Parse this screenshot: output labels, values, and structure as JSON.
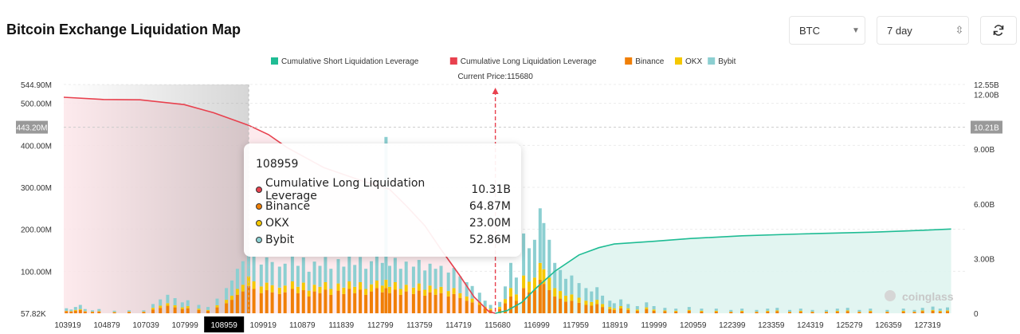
{
  "header": {
    "title": "Bitcoin Exchange Liquidation Map"
  },
  "controls": {
    "coin": "BTC",
    "range": "7 day"
  },
  "colors": {
    "short": "#1fbc94",
    "long": "#e8414e",
    "binance": "#f07f06",
    "okx": "#f5c800",
    "bybit": "#8ccfd1",
    "tooltip_label": "#111111"
  },
  "watermark": "coinglass",
  "chart_data": {
    "type": "bar",
    "title": "Bitcoin Exchange Liquidation Map",
    "legend": [
      {
        "name": "Cumulative Short Liquidation Leverage",
        "color": "#1fbc94"
      },
      {
        "name": "Cumulative Long Liquidation Leverage",
        "color": "#e8414e"
      },
      {
        "name": "Binance",
        "color": "#f07f06"
      },
      {
        "name": "OKX",
        "color": "#f5c800"
      },
      {
        "name": "Bybit",
        "color": "#8ccfd1"
      }
    ],
    "current_price_label": "Current Price:115680",
    "current_price": 115680,
    "x_range": [
      103919,
      128500
    ],
    "x_ticks": [
      "103919",
      "104879",
      "107039",
      "107999",
      "108959",
      "109919",
      "110879",
      "111839",
      "112799",
      "113759",
      "114719",
      "115680",
      "116999",
      "117959",
      "118919",
      "119999",
      "120959",
      "122399",
      "123359",
      "124319",
      "125279",
      "126359",
      "127319"
    ],
    "left_axis": {
      "ticks": [
        "544.90M",
        "500.00M",
        "400.00M",
        "300.00M",
        "200.00M",
        "100.00M",
        "57.82K"
      ],
      "tick_values": [
        544.9,
        500,
        400,
        300,
        200,
        100,
        0
      ],
      "unit": "M",
      "range": [
        0,
        544.9
      ]
    },
    "right_axis": {
      "ticks": [
        "12.55B",
        "12.00B",
        "9.00B",
        "6.00B",
        "3.00B",
        "0"
      ],
      "tick_values": [
        12.55,
        12,
        9,
        6,
        3,
        0
      ],
      "unit": "B",
      "range": [
        0,
        12.55
      ]
    },
    "crosshair": {
      "x_label": "108959",
      "left_label": "443.20M",
      "right_label": "10.21B"
    },
    "long_curve": [
      [
        103919,
        11.85
      ],
      [
        105000,
        11.73
      ],
      [
        106000,
        11.71
      ],
      [
        107200,
        11.45
      ],
      [
        108000,
        11.0
      ],
      [
        108959,
        10.31
      ],
      [
        109500,
        9.8
      ],
      [
        110000,
        9.1
      ],
      [
        111000,
        8.0
      ],
      [
        112000,
        7.3
      ],
      [
        112800,
        6.8
      ],
      [
        113300,
        5.8
      ],
      [
        113760,
        4.8
      ],
      [
        114200,
        3.5
      ],
      [
        114700,
        2.1
      ],
      [
        115100,
        0.9
      ],
      [
        115500,
        0.1
      ],
      [
        115680,
        0
      ]
    ],
    "short_curve": [
      [
        115680,
        0
      ],
      [
        116000,
        0.15
      ],
      [
        116400,
        0.6
      ],
      [
        116800,
        1.4
      ],
      [
        117300,
        2.3
      ],
      [
        117960,
        3.2
      ],
      [
        118500,
        3.6
      ],
      [
        118920,
        3.8
      ],
      [
        120000,
        3.95
      ],
      [
        121000,
        4.1
      ],
      [
        122400,
        4.25
      ],
      [
        124000,
        4.35
      ],
      [
        126000,
        4.45
      ],
      [
        127300,
        4.55
      ],
      [
        128100,
        4.62
      ]
    ],
    "tooltip": {
      "title": "108959",
      "rows": [
        {
          "label": "Cumulative Long Liquidation Leverage",
          "value": "10.31B",
          "color": "#e8414e"
        },
        {
          "label": "Binance",
          "value": "64.87M",
          "color": "#f07f06"
        },
        {
          "label": "OKX",
          "value": "23.00M",
          "color": "#f5c800"
        },
        {
          "label": "Bybit",
          "value": "52.86M",
          "color": "#8ccfd1"
        }
      ]
    },
    "bars_M": [
      [
        [
          103990,
          5,
          1,
          6
        ],
        [
          104120,
          4,
          1,
          4
        ],
        [
          104240,
          6,
          2,
          7
        ],
        [
          104370,
          8,
          2,
          10
        ],
        [
          104500,
          4,
          1,
          5
        ],
        [
          104700,
          3,
          1,
          3
        ],
        [
          104880,
          4,
          1,
          5
        ],
        [
          105300,
          2,
          1,
          3
        ],
        [
          105700,
          3,
          1,
          3
        ],
        [
          106100,
          3,
          1,
          3
        ],
        [
          106350,
          9,
          4,
          9
        ],
        [
          106550,
          13,
          5,
          15
        ],
        [
          106750,
          18,
          6,
          20
        ],
        [
          106950,
          14,
          5,
          17
        ],
        [
          107150,
          10,
          4,
          12
        ],
        [
          107300,
          12,
          5,
          14
        ],
        [
          107600,
          8,
          3,
          9
        ],
        [
          107850,
          6,
          2,
          7
        ],
        [
          108100,
          14,
          5,
          16
        ],
        [
          108350,
          24,
          8,
          28
        ],
        [
          108500,
          32,
          10,
          36
        ],
        [
          108650,
          44,
          14,
          48
        ],
        [
          108800,
          52,
          16,
          56
        ],
        [
          108959,
          65,
          23,
          53
        ],
        [
          109100,
          58,
          18,
          60
        ],
        [
          109300,
          48,
          16,
          52
        ],
        [
          109450,
          55,
          18,
          60
        ],
        [
          109600,
          50,
          17,
          55
        ],
        [
          109800,
          46,
          15,
          50
        ],
        [
          109950,
          50,
          16,
          52
        ],
        [
          110150,
          58,
          18,
          62
        ],
        [
          110300,
          48,
          15,
          50
        ],
        [
          110450,
          55,
          18,
          60
        ],
        [
          110600,
          40,
          14,
          45
        ],
        [
          110750,
          52,
          16,
          55
        ],
        [
          110900,
          48,
          15,
          50
        ],
        [
          111050,
          56,
          18,
          60
        ],
        [
          111200,
          44,
          14,
          48
        ],
        [
          111400,
          54,
          17,
          58
        ],
        [
          111550,
          46,
          15,
          50
        ],
        [
          111700,
          58,
          18,
          60
        ],
        [
          111850,
          48,
          15,
          52
        ],
        [
          112000,
          56,
          18,
          60
        ],
        [
          112150,
          44,
          14,
          48
        ],
        [
          112300,
          52,
          17,
          55
        ],
        [
          112450,
          60,
          18,
          62
        ],
        [
          112600,
          50,
          16,
          54
        ],
        [
          112700,
          60,
          20,
          340
        ],
        [
          112800,
          48,
          15,
          50
        ],
        [
          112950,
          56,
          18,
          58
        ],
        [
          113100,
          44,
          14,
          48
        ],
        [
          113250,
          52,
          16,
          55
        ],
        [
          113450,
          46,
          15,
          50
        ],
        [
          113600,
          54,
          17,
          56
        ],
        [
          113760,
          42,
          14,
          46
        ],
        [
          113900,
          50,
          16,
          52
        ],
        [
          114050,
          44,
          14,
          48
        ],
        [
          114200,
          48,
          15,
          50
        ],
        [
          114400,
          40,
          13,
          44
        ],
        [
          114550,
          46,
          14,
          48
        ],
        [
          114720,
          36,
          12,
          40
        ],
        [
          114900,
          30,
          10,
          34
        ],
        [
          115050,
          26,
          9,
          30
        ],
        [
          115250,
          20,
          7,
          22
        ],
        [
          115400,
          12,
          4,
          14
        ],
        [
          115550,
          8,
          3,
          9
        ]
      ],
      [
        [
          115800,
          10,
          5,
          12
        ],
        [
          115950,
          24,
          10,
          30
        ],
        [
          116100,
          40,
          20,
          60
        ],
        [
          116250,
          30,
          15,
          40
        ],
        [
          116450,
          60,
          30,
          100
        ],
        [
          116600,
          50,
          25,
          80
        ],
        [
          116750,
          55,
          30,
          90
        ],
        [
          116900,
          80,
          40,
          130
        ],
        [
          117000,
          70,
          35,
          110
        ],
        [
          117150,
          55,
          30,
          90
        ],
        [
          117300,
          40,
          20,
          60
        ],
        [
          117450,
          35,
          18,
          50
        ],
        [
          117600,
          28,
          14,
          40
        ],
        [
          117760,
          30,
          15,
          45
        ],
        [
          117960,
          25,
          12,
          35
        ],
        [
          118150,
          20,
          10,
          30
        ],
        [
          118300,
          18,
          9,
          25
        ],
        [
          118450,
          22,
          10,
          30
        ],
        [
          118600,
          15,
          7,
          20
        ],
        [
          118800,
          10,
          5,
          15
        ],
        [
          118920,
          8,
          4,
          12
        ],
        [
          119100,
          12,
          5,
          16
        ],
        [
          119300,
          8,
          4,
          10
        ],
        [
          119550,
          6,
          3,
          8
        ],
        [
          119800,
          10,
          4,
          12
        ],
        [
          120000,
          6,
          3,
          8
        ],
        [
          120300,
          5,
          2,
          6
        ],
        [
          120600,
          4,
          2,
          5
        ],
        [
          120960,
          6,
          2,
          7
        ],
        [
          121300,
          4,
          2,
          5
        ],
        [
          121700,
          4,
          2,
          5
        ],
        [
          122100,
          3,
          1,
          4
        ],
        [
          122400,
          4,
          2,
          5
        ],
        [
          122800,
          3,
          1,
          4
        ],
        [
          123100,
          4,
          2,
          5
        ],
        [
          123360,
          5,
          2,
          6
        ],
        [
          123700,
          3,
          1,
          4
        ],
        [
          124000,
          4,
          2,
          5
        ],
        [
          124320,
          3,
          1,
          4
        ],
        [
          124700,
          3,
          1,
          4
        ],
        [
          125000,
          4,
          2,
          5
        ],
        [
          125280,
          5,
          2,
          6
        ],
        [
          125600,
          3,
          1,
          4
        ],
        [
          125900,
          4,
          2,
          5
        ],
        [
          126360,
          3,
          1,
          4
        ],
        [
          126800,
          4,
          2,
          5
        ],
        [
          127100,
          3,
          1,
          4
        ],
        [
          127320,
          5,
          2,
          6
        ],
        [
          127600,
          6,
          2,
          8
        ],
        [
          127800,
          4,
          2,
          5
        ],
        [
          128000,
          5,
          2,
          7
        ]
      ]
    ]
  }
}
